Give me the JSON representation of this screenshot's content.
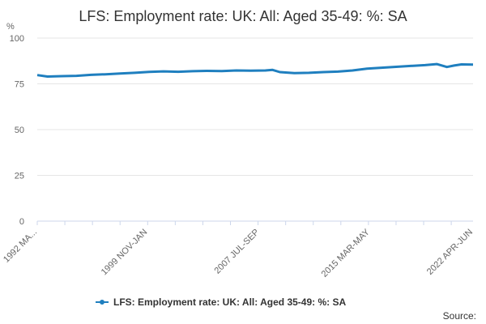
{
  "chart_data": {
    "type": "line",
    "title": "LFS: Employment rate: UK: All: Aged 35-49: %: SA",
    "y_unit_label": "%",
    "ylim": [
      0,
      100
    ],
    "y_ticks": [
      0,
      25,
      50,
      75,
      100
    ],
    "x_tick_labels": [
      "1992 MA...",
      "1999 NOV-JAN",
      "2007 JUL-SEP",
      "2015 MAR-MAY",
      "2022 APR-JUN"
    ],
    "x": [
      1992.3,
      1993,
      1994,
      1995,
      1996,
      1997,
      1998,
      1999,
      2000,
      2001,
      2002,
      2003,
      2004,
      2005,
      2006,
      2007,
      2008,
      2008.5,
      2009,
      2010,
      2011,
      2012,
      2013,
      2014,
      2015,
      2016,
      2017,
      2018,
      2019,
      2019.8,
      2020.5,
      2021,
      2021.5,
      2022.3
    ],
    "series": [
      {
        "name": "LFS: Employment rate: UK: All: Aged 35-49: %: SA",
        "color": "#1f7fbf",
        "values": [
          79.8,
          79.0,
          79.2,
          79.4,
          79.9,
          80.2,
          80.6,
          81.0,
          81.5,
          81.8,
          81.6,
          81.9,
          82.1,
          82.0,
          82.3,
          82.2,
          82.3,
          82.6,
          81.4,
          80.9,
          81.0,
          81.4,
          81.7,
          82.3,
          83.3,
          83.8,
          84.3,
          84.8,
          85.2,
          85.8,
          84.2,
          85.0,
          85.6,
          85.5
        ]
      }
    ],
    "x_min": 1992.3,
    "x_max": 2022.3,
    "x_tick_positions": [
      1992.3,
      1999.9,
      2007.6,
      2015.2,
      2022.3
    ],
    "legend_position": "bottom-center",
    "grid": "horizontal"
  },
  "source_label": "Source:"
}
